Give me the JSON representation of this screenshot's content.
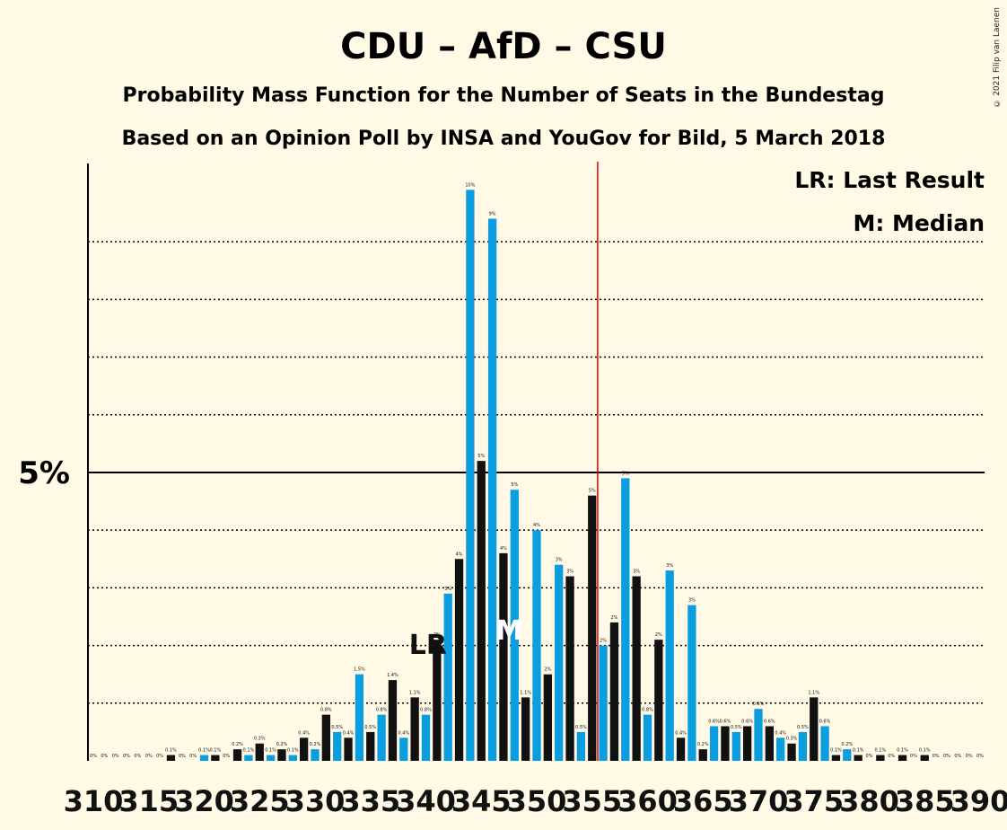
{
  "chart_data": {
    "type": "bar",
    "title": "CDU – AfD – CSU",
    "subtitle_1": "Probability Mass Function for the Number of Seats in the Bundestag",
    "subtitle_2": "Based on an Opinion Poll by INSA and YouGov for Bild, 5 March 2018",
    "y_tick_label": "5%",
    "y_tick_value": 5,
    "ylim": [
      0,
      10.7
    ],
    "xlim": [
      310,
      390
    ],
    "x_tick_labels": [
      "310",
      "315",
      "320",
      "325",
      "330",
      "335",
      "340",
      "345",
      "350",
      "355",
      "360",
      "365",
      "370",
      "375",
      "380",
      "385",
      "390"
    ],
    "majority_line_x": 355.5,
    "majority_color": "#e00000",
    "last_result_seat": 341,
    "median_seat": 348,
    "legend": {
      "lr": "LR: Last Result",
      "m": "M: Median"
    },
    "lr_marker": "LR",
    "median_marker": "M",
    "colors": {
      "blue": "#0a9ee0",
      "black": "#111111",
      "background": "#fff9e6"
    },
    "bars": [
      {
        "seat": 310,
        "value": 0,
        "label": "0%"
      },
      {
        "seat": 311,
        "value": 0,
        "label": "0%"
      },
      {
        "seat": 312,
        "value": 0,
        "label": "0%"
      },
      {
        "seat": 313,
        "value": 0,
        "label": "0%"
      },
      {
        "seat": 314,
        "value": 0,
        "label": "0%"
      },
      {
        "seat": 315,
        "value": 0,
        "label": "0%"
      },
      {
        "seat": 316,
        "value": 0,
        "label": "0%"
      },
      {
        "seat": 317,
        "value": 0.1,
        "label": "0.1%"
      },
      {
        "seat": 318,
        "value": 0,
        "label": "0%"
      },
      {
        "seat": 319,
        "value": 0,
        "label": "0%"
      },
      {
        "seat": 320,
        "value": 0.1,
        "label": "0.1%"
      },
      {
        "seat": 321,
        "value": 0.1,
        "label": "0.1%"
      },
      {
        "seat": 322,
        "value": 0,
        "label": "0%"
      },
      {
        "seat": 323,
        "value": 0.2,
        "label": "0.2%"
      },
      {
        "seat": 324,
        "value": 0.1,
        "label": "0.1%"
      },
      {
        "seat": 325,
        "value": 0.3,
        "label": "0.3%"
      },
      {
        "seat": 326,
        "value": 0.1,
        "label": "0.1%"
      },
      {
        "seat": 327,
        "value": 0.2,
        "label": "0.2%"
      },
      {
        "seat": 328,
        "value": 0.1,
        "label": "0.1%"
      },
      {
        "seat": 329,
        "value": 0.4,
        "label": "0.4%"
      },
      {
        "seat": 330,
        "value": 0.2,
        "label": "0.2%"
      },
      {
        "seat": 331,
        "value": 0.8,
        "label": "0.8%"
      },
      {
        "seat": 332,
        "value": 0.5,
        "label": "0.5%"
      },
      {
        "seat": 333,
        "value": 0.4,
        "label": "0.4%"
      },
      {
        "seat": 334,
        "value": 1.5,
        "label": "1.5%"
      },
      {
        "seat": 335,
        "value": 0.5,
        "label": "0.5%"
      },
      {
        "seat": 336,
        "value": 0.8,
        "label": "0.8%"
      },
      {
        "seat": 337,
        "value": 1.4,
        "label": "1.4%"
      },
      {
        "seat": 338,
        "value": 0.4,
        "label": "0.4%"
      },
      {
        "seat": 339,
        "value": 1.1,
        "label": "1.1%"
      },
      {
        "seat": 340,
        "value": 0.8,
        "label": "0.8%"
      },
      {
        "seat": 341,
        "value": 2.1,
        "label": "2%"
      },
      {
        "seat": 342,
        "value": 2.9,
        "label": "3%"
      },
      {
        "seat": 343,
        "value": 3.5,
        "label": "4%"
      },
      {
        "seat": 344,
        "value": 9.9,
        "label": "10%"
      },
      {
        "seat": 345,
        "value": 5.2,
        "label": "5%"
      },
      {
        "seat": 346,
        "value": 9.4,
        "label": "9%"
      },
      {
        "seat": 347,
        "value": 3.6,
        "label": "4%"
      },
      {
        "seat": 348,
        "value": 4.7,
        "label": "5%"
      },
      {
        "seat": 349,
        "value": 1.1,
        "label": "1.1%"
      },
      {
        "seat": 350,
        "value": 4.0,
        "label": "4%"
      },
      {
        "seat": 351,
        "value": 1.5,
        "label": "2%"
      },
      {
        "seat": 352,
        "value": 3.4,
        "label": "3%"
      },
      {
        "seat": 353,
        "value": 3.2,
        "label": "3%"
      },
      {
        "seat": 354,
        "value": 0.5,
        "label": "0.5%"
      },
      {
        "seat": 355,
        "value": 4.6,
        "label": "5%"
      },
      {
        "seat": 356,
        "value": 2.0,
        "label": "2%"
      },
      {
        "seat": 357,
        "value": 2.4,
        "label": "2%"
      },
      {
        "seat": 358,
        "value": 4.9,
        "label": "5%"
      },
      {
        "seat": 359,
        "value": 3.2,
        "label": "3%"
      },
      {
        "seat": 360,
        "value": 0.8,
        "label": "0.8%"
      },
      {
        "seat": 361,
        "value": 2.1,
        "label": "2%"
      },
      {
        "seat": 362,
        "value": 3.3,
        "label": "3%"
      },
      {
        "seat": 363,
        "value": 0.4,
        "label": "0.4%"
      },
      {
        "seat": 364,
        "value": 2.7,
        "label": "3%"
      },
      {
        "seat": 365,
        "value": 0.2,
        "label": "0.2%"
      },
      {
        "seat": 366,
        "value": 0.6,
        "label": "0.6%"
      },
      {
        "seat": 367,
        "value": 0.6,
        "label": "0.6%"
      },
      {
        "seat": 368,
        "value": 0.5,
        "label": "0.5%"
      },
      {
        "seat": 369,
        "value": 0.6,
        "label": "0.6%"
      },
      {
        "seat": 370,
        "value": 0.9,
        "label": "0.9%"
      },
      {
        "seat": 371,
        "value": 0.6,
        "label": "0.6%"
      },
      {
        "seat": 372,
        "value": 0.4,
        "label": "0.4%"
      },
      {
        "seat": 373,
        "value": 0.3,
        "label": "0.3%"
      },
      {
        "seat": 374,
        "value": 0.5,
        "label": "0.5%"
      },
      {
        "seat": 375,
        "value": 1.1,
        "label": "1.1%"
      },
      {
        "seat": 376,
        "value": 0.6,
        "label": "0.6%"
      },
      {
        "seat": 377,
        "value": 0.1,
        "label": "0.1%"
      },
      {
        "seat": 378,
        "value": 0.2,
        "label": "0.2%"
      },
      {
        "seat": 379,
        "value": 0.1,
        "label": "0.1%"
      },
      {
        "seat": 380,
        "value": 0,
        "label": "0%"
      },
      {
        "seat": 381,
        "value": 0.1,
        "label": "0.1%"
      },
      {
        "seat": 382,
        "value": 0,
        "label": "0%"
      },
      {
        "seat": 383,
        "value": 0.1,
        "label": "0.1%"
      },
      {
        "seat": 384,
        "value": 0,
        "label": "0%"
      },
      {
        "seat": 385,
        "value": 0.1,
        "label": "0.1%"
      },
      {
        "seat": 386,
        "value": 0,
        "label": "0%"
      },
      {
        "seat": 387,
        "value": 0,
        "label": "0%"
      },
      {
        "seat": 388,
        "value": 0,
        "label": "0%"
      },
      {
        "seat": 389,
        "value": 0,
        "label": "0%"
      },
      {
        "seat": 390,
        "value": 0,
        "label": "0%"
      }
    ]
  },
  "copyright": "© 2021 Filip van Laenen"
}
